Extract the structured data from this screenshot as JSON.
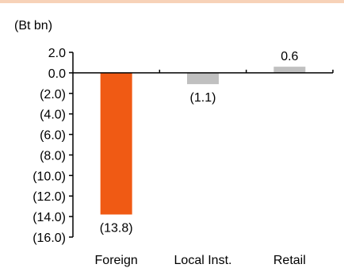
{
  "chart_data": {
    "type": "bar",
    "unit_label": "(Bt bn)",
    "categories": [
      "Foreign",
      "Local Inst.",
      "Retail"
    ],
    "values": [
      -13.8,
      -1.1,
      0.6
    ],
    "data_labels": [
      "(13.8)",
      "(1.1)",
      "0.6"
    ],
    "ylim": [
      -16,
      2
    ],
    "yticks": [
      2,
      0,
      -2,
      -4,
      -6,
      -8,
      -10,
      -12,
      -14,
      -16
    ],
    "ytick_labels": [
      "2.0",
      "0.0",
      "(2.0)",
      "(4.0)",
      "(6.0)",
      "(8.0)",
      "(10.0)",
      "(12.0)",
      "(14.0)",
      "(16.0)"
    ],
    "bar_colors": [
      "#f05a14",
      "#c0c0c0",
      "#c0c0c0"
    ],
    "grid": false,
    "legend": "none"
  }
}
